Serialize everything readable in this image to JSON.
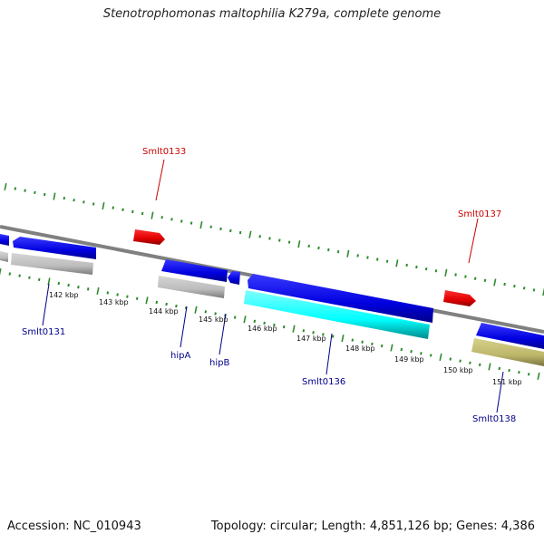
{
  "title": "Stenotrophomonas maltophilia K279a, complete genome",
  "footer": {
    "accession": "Accession: NC_010943",
    "stats": "Topology: circular; Length: 4,851,126 bp; Genes: 4,386"
  },
  "colors": {
    "backbone": "#808080",
    "tick": "#2e8b2e",
    "forward_gene": "#0000ee",
    "reverse_gene": "#bcbcbc",
    "rna_gene": "#ee0000",
    "cyan_gene": "#00ffff",
    "khaki_gene": "#bdb76b",
    "label_blue": "#00008b",
    "label_red": "#cc0000"
  },
  "kbp_labels": [
    "142 kbp",
    "143 kbp",
    "144 kbp",
    "145 kbp",
    "146 kbp",
    "147 kbp",
    "148 kbp",
    "149 kbp",
    "150 kbp",
    "151 kbp"
  ],
  "gene_labels": [
    {
      "text": "Smlt0133",
      "color": "red"
    },
    {
      "text": "Smlt0137",
      "color": "red"
    },
    {
      "text": "Smlt0131",
      "color": "blue"
    },
    {
      "text": "hipA",
      "color": "blue"
    },
    {
      "text": "hipB",
      "color": "blue"
    },
    {
      "text": "Smlt0136",
      "color": "blue"
    },
    {
      "text": "Smlt0138",
      "color": "blue"
    }
  ]
}
